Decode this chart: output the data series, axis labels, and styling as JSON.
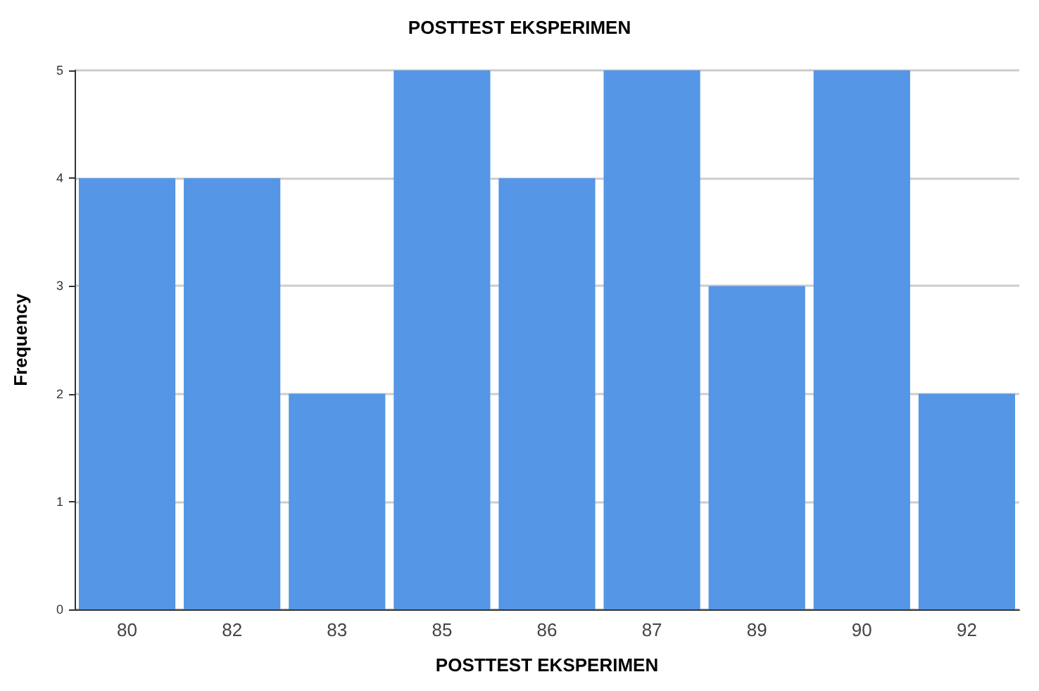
{
  "chart_data": {
    "type": "bar",
    "title": "POSTTEST EKSPERIMEN",
    "xlabel": "POSTTEST EKSPERIMEN",
    "ylabel": "Frequency",
    "categories": [
      "80",
      "82",
      "83",
      "85",
      "86",
      "87",
      "89",
      "90",
      "92"
    ],
    "values": [
      4,
      4,
      2,
      5,
      4,
      5,
      3,
      5,
      2
    ],
    "color": "#5596e6",
    "ylim": [
      0,
      5
    ],
    "yticks": [
      0,
      1,
      2,
      3,
      4,
      5
    ],
    "grid": "y"
  }
}
